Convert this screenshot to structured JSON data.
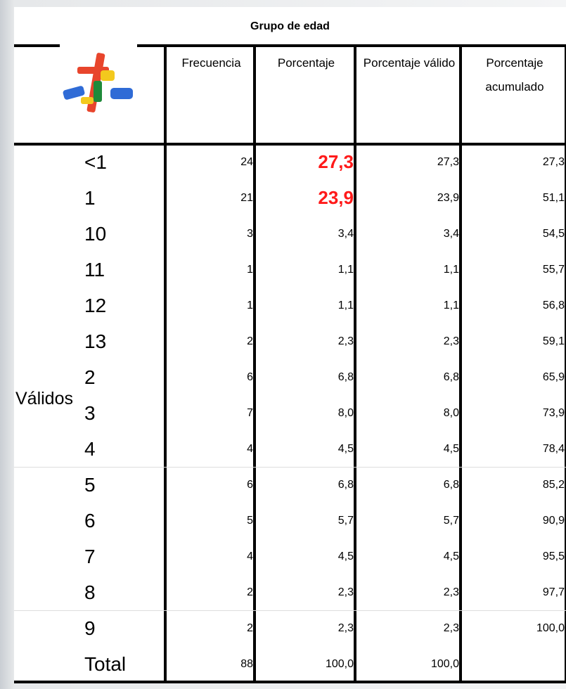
{
  "table": {
    "title": "Grupo de edad",
    "header": [
      "Frecuencia",
      "Porcentaje",
      "Porcentaje válido",
      "Porcentaje acumulado"
    ],
    "stub": "Válidos",
    "highlight_color": "#ff1a1a",
    "rows": [
      [
        "<1",
        "24",
        "27,3",
        "27,3",
        "27,3"
      ],
      [
        "1",
        "21",
        "23,9",
        "23,9",
        "51,1"
      ],
      [
        "10",
        "3",
        "3,4",
        "3,4",
        "54,5"
      ],
      [
        "11",
        "1",
        "1,1",
        "1,1",
        "55,7"
      ],
      [
        "12",
        "1",
        "1,1",
        "1,1",
        "56,8"
      ],
      [
        "13",
        "2",
        "2,3",
        "2,3",
        "59,1"
      ],
      [
        "2",
        "6",
        "6,8",
        "6,8",
        "65,9"
      ],
      [
        "3",
        "7",
        "8,0",
        "8,0",
        "73,9"
      ],
      [
        "4",
        "4",
        "4,5",
        "4,5",
        "78,4"
      ],
      [
        "5",
        "6",
        "6,8",
        "6,8",
        "85,2"
      ],
      [
        "6",
        "5",
        "5,7",
        "5,7",
        "90,9"
      ],
      [
        "7",
        "4",
        "4,5",
        "4,5",
        "95,5"
      ],
      [
        "8",
        "2",
        "2,3",
        "2,3",
        "97,7"
      ],
      [
        "9",
        "2",
        "2,3",
        "2,3",
        "100,0"
      ],
      [
        "Total",
        "88",
        "100,0",
        "100,0"
      ]
    ]
  }
}
